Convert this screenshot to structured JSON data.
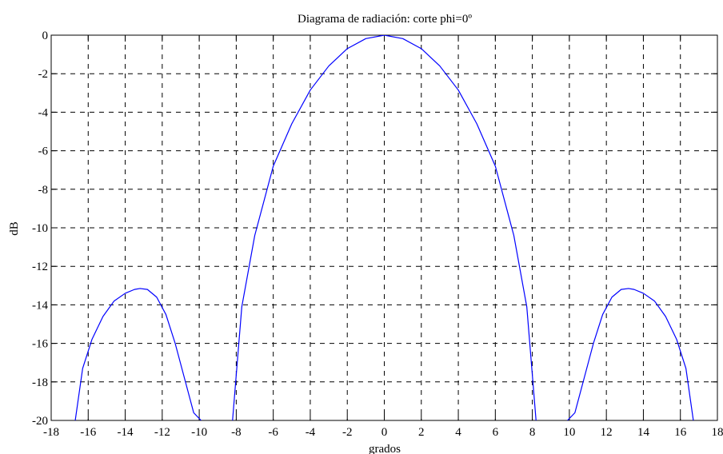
{
  "chart_data": {
    "type": "line",
    "title": "Diagrama de radiación: corte phi=0º",
    "xlabel": "grados",
    "ylabel": "dB",
    "xlim": [
      -18,
      18
    ],
    "ylim": [
      -20,
      0
    ],
    "grid": true,
    "xticks": [
      -18,
      -16,
      -14,
      -12,
      -10,
      -8,
      -6,
      -4,
      -2,
      0,
      2,
      4,
      6,
      8,
      10,
      12,
      14,
      16,
      18
    ],
    "yticks": [
      0,
      -2,
      -4,
      -6,
      -8,
      -10,
      -12,
      -14,
      -16,
      -18,
      -20
    ],
    "colors": {
      "line": "#0000ff",
      "grid": "#000000",
      "axes": "#000000"
    },
    "segments": [
      {
        "name": "",
        "x": [
          -16.7,
          -16.3,
          -15.8,
          -15.2,
          -14.6,
          -14.0,
          -13.5,
          -13.2,
          -12.8,
          -12.3,
          -11.8,
          -11.3,
          -10.8,
          -10.3,
          -9.9
        ],
        "y": [
          -20,
          -17.3,
          -15.8,
          -14.6,
          -13.8,
          -13.4,
          -13.2,
          -13.15,
          -13.2,
          -13.6,
          -14.5,
          -16.0,
          -17.8,
          -19.6,
          -20
        ]
      },
      {
        "name": "",
        "x": [
          -8.2,
          -7.7,
          -7.0,
          -6.0,
          -5.0,
          -4.0,
          -3.0,
          -2.0,
          -1.0,
          0.0,
          1.0,
          2.0,
          3.0,
          4.0,
          5.0,
          6.0,
          7.0,
          7.7,
          8.2
        ],
        "y": [
          -20,
          -14.1,
          -10.4,
          -6.8,
          -4.6,
          -2.85,
          -1.6,
          -0.7,
          -0.18,
          0.0,
          -0.18,
          -0.7,
          -1.6,
          -2.85,
          -4.6,
          -6.8,
          -10.4,
          -14.1,
          -20
        ]
      },
      {
        "name": "",
        "x": [
          9.9,
          10.3,
          10.8,
          11.3,
          11.8,
          12.3,
          12.8,
          13.2,
          13.5,
          14.0,
          14.6,
          15.2,
          15.8,
          16.3,
          16.7
        ],
        "y": [
          -20,
          -19.6,
          -17.8,
          -16.0,
          -14.5,
          -13.6,
          -13.2,
          -13.15,
          -13.2,
          -13.4,
          -13.8,
          -14.6,
          -15.8,
          -17.3,
          -20
        ]
      }
    ]
  }
}
